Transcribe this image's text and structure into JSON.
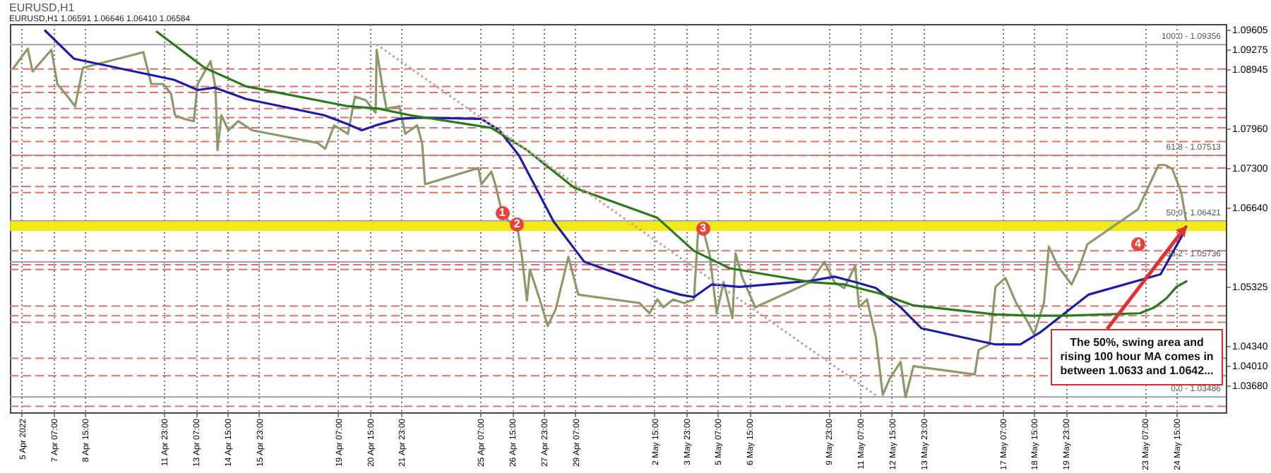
{
  "chart_data": {
    "type": "line",
    "title": "EURUSD,H1",
    "subtitle": "EURUSD,H1  1.06591 1.06646 1.06410 1.06584",
    "xlim": [
      "2022-04-05T11:00",
      "2022-05-26T17:00"
    ],
    "ylim": [
      1.0323,
      1.097
    ],
    "xticks": [
      {
        "value": "2022-04-05T23:00",
        "label": "5 Apr 2022"
      },
      {
        "value": "2022-04-07T07:00",
        "label": "7 Apr 07:00"
      },
      {
        "value": "2022-04-08T15:00",
        "label": "8 Apr 15:00"
      },
      {
        "value": "2022-04-11T23:00",
        "label": "11 Apr 23:00"
      },
      {
        "value": "2022-04-13T07:00",
        "label": "13 Apr 07:00"
      },
      {
        "value": "2022-04-14T15:00",
        "label": "14 Apr 15:00"
      },
      {
        "value": "2022-04-15T23:00",
        "label": "15 Apr 23:00"
      },
      {
        "value": "2022-04-19T07:00",
        "label": "19 Apr 07:00"
      },
      {
        "value": "2022-04-20T15:00",
        "label": "20 Apr 15:00"
      },
      {
        "value": "2022-04-21T23:00",
        "label": "21 Apr 23:00"
      },
      {
        "value": "2022-04-25T07:00",
        "label": "25 Apr 07:00"
      },
      {
        "value": "2022-04-26T15:00",
        "label": "26 Apr 15:00"
      },
      {
        "value": "2022-04-27T23:00",
        "label": "27 Apr 23:00"
      },
      {
        "value": "2022-04-29T07:00",
        "label": "29 Apr 07:00"
      },
      {
        "value": "2022-05-02T15:00",
        "label": "2 May 15:00"
      },
      {
        "value": "2022-05-03T23:00",
        "label": "3 May 23:00"
      },
      {
        "value": "2022-05-05T07:00",
        "label": "5 May 07:00"
      },
      {
        "value": "2022-05-06T15:00",
        "label": "6 May 15:00"
      },
      {
        "value": "2022-05-09T23:00",
        "label": "9 May 23:00"
      },
      {
        "value": "2022-05-11T07:00",
        "label": "11 May 07:00"
      },
      {
        "value": "2022-05-12T15:00",
        "label": "12 May 15:00"
      },
      {
        "value": "2022-05-13T23:00",
        "label": "13 May 23:00"
      },
      {
        "value": "2022-05-17T07:00",
        "label": "17 May 07:00"
      },
      {
        "value": "2022-05-18T15:00",
        "label": "18 May 15:00"
      },
      {
        "value": "2022-05-19T23:00",
        "label": "19 May 23:00"
      },
      {
        "value": "2022-05-23T07:00",
        "label": "23 May 07:00"
      },
      {
        "value": "2022-05-24T15:00",
        "label": "24 May 15:00"
      }
    ],
    "yticks": [
      {
        "value": 1.09605,
        "label": "1.09605"
      },
      {
        "value": 1.09275,
        "label": "1.09275"
      },
      {
        "value": 1.08945,
        "label": "1.08945"
      },
      {
        "value": 1.0796,
        "label": "1.07960"
      },
      {
        "value": 1.073,
        "label": "1.07300"
      },
      {
        "value": 1.0664,
        "label": "1.06640"
      },
      {
        "value": 1.05325,
        "label": "1.05325"
      },
      {
        "value": 1.0434,
        "label": "1.04340"
      },
      {
        "value": 1.0401,
        "label": "1.04010"
      },
      {
        "value": 1.0368,
        "label": "1.03680"
      }
    ],
    "grid": "x",
    "series": [
      {
        "color": "#8a9a6a",
        "x": [
          "2022-04-05T14:00",
          "2022-04-06T05:00",
          "2022-04-06T10:00",
          "2022-04-07T05:00",
          "2022-04-07T11:00",
          "2022-04-07T19:00",
          "2022-04-08T05:00",
          "2022-04-08T10:00",
          "2022-04-08T13:00",
          "2022-04-11T02:00",
          "2022-04-11T10:00",
          "2022-04-11T22:00",
          "2022-04-12T06:00",
          "2022-04-12T10:00",
          "2022-04-12T19:00",
          "2022-04-13T05:00",
          "2022-04-13T09:00",
          "2022-04-13T22:00",
          "2022-04-14T03:00",
          "2022-04-14T05:00",
          "2022-04-14T09:00",
          "2022-04-14T16:00",
          "2022-04-15T02:00",
          "2022-04-15T16:00",
          "2022-04-18T10:00",
          "2022-04-18T18:00",
          "2022-04-19T03:00",
          "2022-04-19T17:00",
          "2022-04-20T00:00",
          "2022-04-20T11:00",
          "2022-04-20T21:00",
          "2022-04-20T22:00",
          "2022-04-21T04:00",
          "2022-04-21T08:00",
          "2022-04-21T21:00",
          "2022-04-22T03:00",
          "2022-04-22T08:00",
          "2022-04-22T15:00",
          "2022-04-22T20:00",
          "2022-04-22T23:00",
          "2022-04-25T05:00",
          "2022-04-25T08:00",
          "2022-04-25T18:00",
          "2022-04-25T22:00",
          "2022-04-26T05:00",
          "2022-04-26T07:00",
          "2022-04-26T12:00",
          "2022-04-26T20:00",
          "2022-04-27T01:00",
          "2022-04-27T06:00",
          "2022-04-27T09:00",
          "2022-04-27T19:00",
          "2022-04-28T03:00",
          "2022-04-28T11:00",
          "2022-04-29T00:00",
          "2022-04-29T10:00",
          "2022-05-02T00:00",
          "2022-05-02T10:00",
          "2022-05-02T18:00",
          "2022-05-03T00:00",
          "2022-05-03T10:00",
          "2022-05-03T21:00",
          "2022-05-04T07:00",
          "2022-05-04T11:00",
          "2022-05-04T16:00",
          "2022-05-04T23:00",
          "2022-05-05T06:00",
          "2022-05-05T13:00",
          "2022-05-05T22:00",
          "2022-05-06T01:00",
          "2022-05-06T08:00",
          "2022-05-06T21:00",
          "2022-05-09T05:00",
          "2022-05-09T19:00",
          "2022-05-10T05:00",
          "2022-05-10T15:00",
          "2022-05-11T02:00",
          "2022-05-11T06:00",
          "2022-05-11T14:00",
          "2022-05-11T23:00",
          "2022-05-12T06:00",
          "2022-05-12T13:00",
          "2022-05-13T00:00",
          "2022-05-13T05:00",
          "2022-05-13T13:00",
          "2022-05-16T03:00",
          "2022-05-16T07:00",
          "2022-05-16T18:00",
          "2022-05-17T00:00",
          "2022-05-17T10:00",
          "2022-05-17T21:00",
          "2022-05-18T07:00",
          "2022-05-18T15:00",
          "2022-05-19T01:00",
          "2022-05-19T06:00",
          "2022-05-19T15:00",
          "2022-05-20T05:00",
          "2022-05-20T12:00",
          "2022-05-20T21:00",
          "2022-05-23T00:00",
          "2022-05-23T08:00",
          "2022-05-23T21:00",
          "2022-05-24T04:00",
          "2022-05-24T11:00",
          "2022-05-24T20:00",
          "2022-05-25T01:00"
        ],
        "values": [
          1.0895,
          1.0929,
          1.0891,
          1.0927,
          1.087,
          1.0854,
          1.0833,
          1.0874,
          1.0897,
          1.0923,
          1.087,
          1.087,
          1.0854,
          1.0818,
          1.0812,
          1.0808,
          1.087,
          1.0908,
          1.0864,
          1.076,
          1.0818,
          1.0793,
          1.0808,
          1.0793,
          1.0772,
          1.0762,
          1.0801,
          1.0787,
          1.0849,
          1.0843,
          1.0822,
          1.0927,
          1.0864,
          1.0829,
          1.0833,
          1.0787,
          1.0793,
          1.0801,
          1.0772,
          1.0703,
          1.073,
          1.0703,
          1.0724,
          1.0703,
          1.0655,
          1.0651,
          1.0641,
          1.0636,
          1.0582,
          1.0509,
          1.0561,
          1.0511,
          1.0467,
          1.0494,
          1.0582,
          1.0519,
          1.0505,
          1.0488,
          1.0511,
          1.0498,
          1.0511,
          1.0505,
          1.0511,
          1.062,
          1.063,
          1.0584,
          1.0488,
          1.054,
          1.048,
          1.0588,
          1.0547,
          1.0498,
          1.054,
          1.0574,
          1.054,
          1.053,
          1.0567,
          1.0498,
          1.0511,
          1.0448,
          1.0352,
          1.0379,
          1.0407,
          1.0348,
          1.04,
          1.0386,
          1.0427,
          1.0436,
          1.0532,
          1.0547,
          1.0505,
          1.0478,
          1.0453,
          1.0505,
          1.0599,
          1.0567,
          1.0536,
          1.0561,
          1.0603,
          1.0661,
          1.0689,
          1.0735,
          1.0735,
          1.0728,
          1.0689,
          1.0641
        ]
      },
      {
        "color": "#1c1ca8",
        "x": [
          "2022-04-06T22:00",
          "2022-04-08T04:00",
          "2022-04-11T04:00",
          "2022-04-12T09:00",
          "2022-04-13T09:00",
          "2022-04-14T02:00",
          "2022-04-15T10:00",
          "2022-04-18T17:00",
          "2022-04-19T17:00",
          "2022-04-20T07:00",
          "2022-04-20T21:00",
          "2022-04-21T21:00",
          "2022-04-22T18:00",
          "2022-04-25T08:00",
          "2022-04-26T02:00",
          "2022-04-26T22:00",
          "2022-04-28T09:00",
          "2022-04-29T16:00",
          "2022-05-02T18:00",
          "2022-05-03T17:00",
          "2022-05-04T07:00",
          "2022-05-05T01:00",
          "2022-05-06T05:00",
          "2022-05-09T05:00",
          "2022-05-10T05:00",
          "2022-05-11T02:00",
          "2022-05-11T23:00",
          "2022-05-13T00:00",
          "2022-05-13T21:00",
          "2022-05-17T00:00",
          "2022-05-18T01:00",
          "2022-05-18T22:00",
          "2022-05-19T22:00",
          "2022-05-20T22:00",
          "2022-05-23T23:00",
          "2022-05-24T23:00",
          "2022-05-25T01:00"
        ],
        "values": [
          1.096,
          1.0912,
          1.0887,
          1.0877,
          1.086,
          1.0864,
          1.0845,
          1.0818,
          1.0803,
          1.0793,
          1.0801,
          1.0812,
          1.0814,
          1.0812,
          1.0793,
          1.0751,
          1.0641,
          1.0574,
          1.053,
          1.0519,
          1.0515,
          1.0536,
          1.0532,
          1.0542,
          1.0549,
          1.054,
          1.053,
          1.0498,
          1.0463,
          1.0436,
          1.0436,
          1.0457,
          1.0488,
          1.0519,
          1.0553,
          1.0624,
          1.0634
        ]
      },
      {
        "color": "#2a7a1a",
        "x": [
          "2022-04-11T15:00",
          "2022-04-13T16:00",
          "2022-04-15T10:00",
          "2022-04-19T17:00",
          "2022-04-21T00:00",
          "2022-04-22T08:00",
          "2022-04-25T18:00",
          "2022-04-27T06:00",
          "2022-04-29T06:00",
          "2022-05-02T18:00",
          "2022-05-04T07:00",
          "2022-05-05T19:00",
          "2022-05-09T05:00",
          "2022-05-10T15:00",
          "2022-05-12T03:00",
          "2022-05-13T13:00",
          "2022-05-17T00:00",
          "2022-05-18T12:00",
          "2022-05-19T22:00",
          "2022-05-23T02:00",
          "2022-05-23T17:00",
          "2022-05-24T05:00",
          "2022-05-24T15:00",
          "2022-05-25T02:00"
        ],
        "values": [
          1.0958,
          1.0897,
          1.0866,
          1.0833,
          1.0829,
          1.0818,
          1.0797,
          1.076,
          1.0697,
          1.0647,
          1.0592,
          1.0563,
          1.054,
          1.0536,
          1.0521,
          1.0501,
          1.0486,
          1.0484,
          1.0484,
          1.0488,
          1.0498,
          1.0513,
          1.0532,
          1.0542
        ]
      },
      {
        "color": "#c8a0a0",
        "line_style": "dotted",
        "x": [
          "2022-04-20T22:00",
          "2022-05-12T01:00"
        ],
        "values": [
          1.0936,
          1.0349
        ]
      }
    ],
    "bands": [
      {
        "axis": "y",
        "from": 1.0625,
        "to": 1.0641,
        "color": "#f2e600"
      }
    ],
    "ref_lines": [
      {
        "axis": "y",
        "value": 1.09356,
        "color": "#a0a0a0"
      },
      {
        "axis": "y",
        "value": 1.07513,
        "color": "#a0a0a0"
      },
      {
        "axis": "y",
        "value": 1.06421,
        "color": "#a0a0a0"
      },
      {
        "axis": "y",
        "value": 1.05736,
        "color": "#a0a0a0"
      },
      {
        "axis": "y",
        "value": 1.03486,
        "color": "#a0a0a0"
      },
      {
        "axis": "y",
        "value": 1.0895,
        "color": "#e07070",
        "line_style": "dashed"
      },
      {
        "axis": "y",
        "value": 1.0866,
        "color": "#e07070",
        "line_style": "dashed"
      },
      {
        "axis": "y",
        "value": 1.0856,
        "color": "#e07070",
        "line_style": "dashed"
      },
      {
        "axis": "y",
        "value": 1.0829,
        "color": "#e07070",
        "line_style": "dashed"
      },
      {
        "axis": "y",
        "value": 1.0814,
        "color": "#e07070",
        "line_style": "dashed"
      },
      {
        "axis": "y",
        "value": 1.0797,
        "color": "#e07070",
        "line_style": "dashed"
      },
      {
        "axis": "y",
        "value": 1.0774,
        "color": "#e07070",
        "line_style": "dashed"
      },
      {
        "axis": "y",
        "value": 1.0751,
        "color": "#e07070",
        "line_style": "dashed"
      },
      {
        "axis": "y",
        "value": 1.073,
        "color": "#e07070",
        "line_style": "dashed"
      },
      {
        "axis": "y",
        "value": 1.0699,
        "color": "#e07070",
        "line_style": "dashed"
      },
      {
        "axis": "y",
        "value": 1.0689,
        "color": "#e07070",
        "line_style": "dashed"
      },
      {
        "axis": "y",
        "value": 1.0592,
        "color": "#e07070",
        "line_style": "dashed"
      },
      {
        "axis": "y",
        "value": 1.0569,
        "color": "#e07070",
        "line_style": "dashed"
      },
      {
        "axis": "y",
        "value": 1.0561,
        "color": "#e07070",
        "line_style": "dashed"
      },
      {
        "axis": "y",
        "value": 1.05,
        "color": "#e07070",
        "line_style": "dashed"
      },
      {
        "axis": "y",
        "value": 1.0484,
        "color": "#e07070",
        "line_style": "dashed"
      },
      {
        "axis": "y",
        "value": 1.0473,
        "color": "#e07070",
        "line_style": "dashed"
      },
      {
        "axis": "y",
        "value": 1.0413,
        "color": "#e07070",
        "line_style": "dashed"
      },
      {
        "axis": "y",
        "value": 1.0384,
        "color": "#e07070",
        "line_style": "dashed"
      },
      {
        "axis": "y",
        "value": 1.0333,
        "color": "#e07070",
        "line_style": "dashed"
      }
    ],
    "annotations": [
      {
        "text": "100.0 - 1.09356",
        "x": "2022-05-26T12:00",
        "y": 1.09356
      },
      {
        "text": "61.8 - 1.07513",
        "x": "2022-05-26T12:00",
        "y": 1.07513
      },
      {
        "text": "50.0 - 1.06421",
        "x": "2022-05-26T12:00",
        "y": 1.06421
      },
      {
        "text": "38.2 - 1.05736",
        "x": "2022-05-26T12:00",
        "y": 1.05736
      },
      {
        "text": "0.0 - 1.03486",
        "x": "2022-05-26T12:00",
        "y": 1.03486
      },
      {
        "text": "1",
        "x": "2022-04-26T05:00",
        "y": 1.0655
      },
      {
        "text": "2",
        "x": "2022-04-26T20:00",
        "y": 1.0636
      },
      {
        "text": "3",
        "x": "2022-05-04T16:00",
        "y": 1.063
      },
      {
        "text": "4",
        "x": "2022-05-23T00:00",
        "y": 1.0603
      },
      {
        "text": "The 50%, swing area and rising 100 hour MA comes in between 1.0633 and 1.0642...",
        "x": "2022-05-25T01:00",
        "y": 1.0634
      }
    ]
  }
}
